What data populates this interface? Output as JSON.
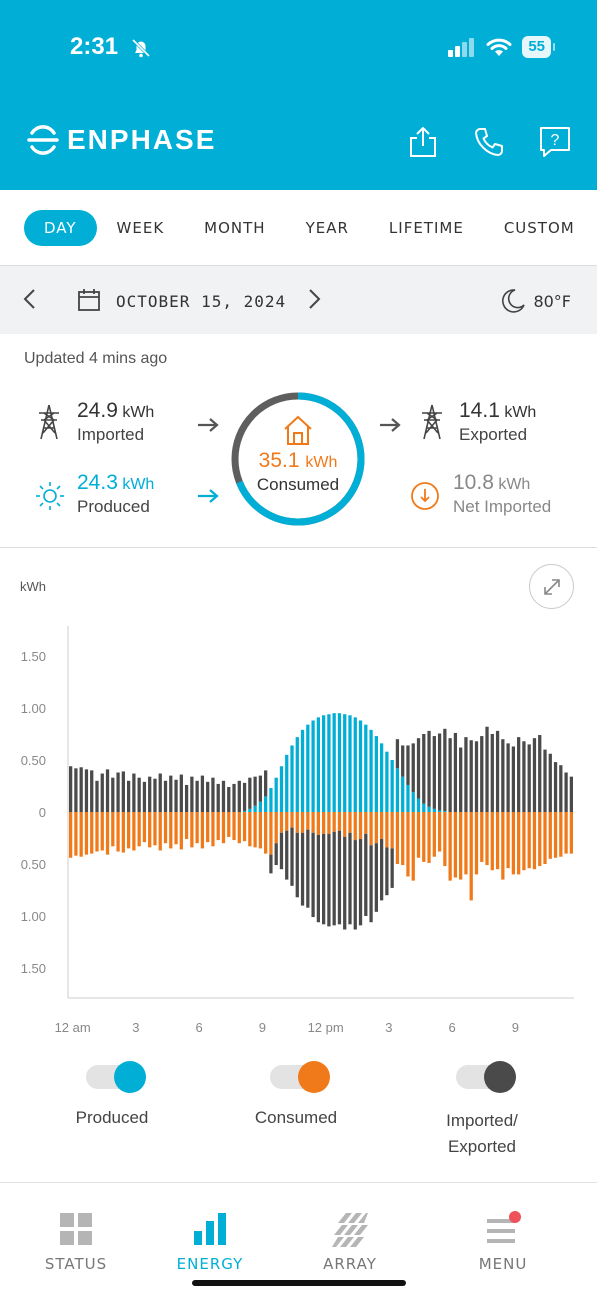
{
  "status_bar": {
    "time": "2:31",
    "battery": "55"
  },
  "header": {
    "brand": "ENPHASE"
  },
  "tabs": [
    {
      "label": "DAY",
      "active": true
    },
    {
      "label": "WEEK"
    },
    {
      "label": "MONTH"
    },
    {
      "label": "YEAR"
    },
    {
      "label": "LIFETIME"
    },
    {
      "label": "CUSTOM"
    }
  ],
  "date_bar": {
    "date": "OCTOBER 15, 2024",
    "temperature": "80°F"
  },
  "summary": {
    "updated": "Updated 4 mins ago",
    "imported": {
      "value": "24.9",
      "unit": "kWh",
      "label": "Imported"
    },
    "produced": {
      "value": "24.3",
      "unit": "kWh",
      "label": "Produced"
    },
    "consumed": {
      "value": "35.1",
      "unit": "kWh",
      "label": "Consumed"
    },
    "exported": {
      "value": "14.1",
      "unit": "kWh",
      "label": "Exported"
    },
    "net": {
      "value": "10.8",
      "unit": "kWh",
      "label": "Net Imported"
    },
    "produced_share_of_consumed": 0.69
  },
  "chart": {
    "ylabel": "kWh"
  },
  "chart_data": {
    "type": "bar",
    "ylabel": "kWh",
    "y_ticks": [
      "1.50",
      "1.00",
      "0.50",
      "0",
      "0.50",
      "1.00",
      "1.50"
    ],
    "x_ticks": [
      "12 am",
      "3",
      "6",
      "9",
      "12 pm",
      "3",
      "6",
      "9"
    ],
    "ylim": [
      -1.75,
      1.75
    ],
    "intervals": 96,
    "interval_minutes": 15,
    "series": [
      {
        "name": "Produced",
        "color": "#00aed6",
        "direction": "up",
        "values": [
          0,
          0,
          0,
          0,
          0,
          0,
          0,
          0,
          0,
          0,
          0,
          0,
          0,
          0,
          0,
          0,
          0,
          0,
          0,
          0,
          0,
          0,
          0,
          0,
          0,
          0,
          0,
          0,
          0,
          0,
          0,
          0,
          0,
          0.01,
          0.03,
          0.06,
          0.1,
          0.15,
          0.23,
          0.33,
          0.44,
          0.55,
          0.64,
          0.72,
          0.79,
          0.84,
          0.88,
          0.91,
          0.93,
          0.94,
          0.95,
          0.95,
          0.94,
          0.93,
          0.91,
          0.88,
          0.84,
          0.79,
          0.73,
          0.66,
          0.58,
          0.5,
          0.42,
          0.34,
          0.26,
          0.19,
          0.13,
          0.08,
          0.05,
          0.03,
          0.015,
          0.01,
          0,
          0,
          0,
          0,
          0,
          0,
          0,
          0,
          0,
          0,
          0,
          0,
          0,
          0,
          0,
          0,
          0,
          0,
          0,
          0,
          0,
          0,
          0,
          0
        ]
      },
      {
        "name": "Imported/Exported",
        "color": "#4a4a4a",
        "direction": "mixed",
        "values": [
          0.44,
          0.42,
          0.43,
          0.41,
          0.4,
          0.3,
          0.37,
          0.41,
          0.33,
          0.38,
          0.39,
          0.3,
          0.37,
          0.33,
          0.29,
          0.34,
          0.32,
          0.37,
          0.3,
          0.35,
          0.31,
          0.36,
          0.26,
          0.34,
          0.3,
          0.35,
          0.29,
          0.33,
          0.27,
          0.3,
          0.24,
          0.27,
          0.3,
          0.27,
          0.3,
          0.28,
          0.25,
          0.25,
          -0.18,
          -0.21,
          -0.35,
          -0.47,
          -0.56,
          -0.62,
          -0.7,
          -0.75,
          -0.81,
          -0.84,
          -0.87,
          -0.89,
          -0.9,
          -0.9,
          -0.89,
          -0.88,
          -0.86,
          -0.83,
          -0.79,
          -0.74,
          -0.66,
          -0.59,
          -0.46,
          -0.38,
          0.28,
          0.3,
          0.38,
          0.47,
          0.58,
          0.67,
          0.73,
          0.7,
          0.74,
          0.79,
          0.71,
          0.76,
          0.62,
          0.72,
          0.69,
          0.68,
          0.73,
          0.82,
          0.75,
          0.78,
          0.7,
          0.66,
          0.63,
          0.72,
          0.68,
          0.65,
          0.71,
          0.74,
          0.6,
          0.56,
          0.48,
          0.45,
          0.38,
          0.34
        ]
      },
      {
        "name": "Consumed",
        "color": "#f07a1a",
        "direction": "down",
        "values": [
          0.44,
          0.42,
          0.43,
          0.41,
          0.4,
          0.38,
          0.37,
          0.41,
          0.33,
          0.38,
          0.39,
          0.35,
          0.37,
          0.33,
          0.29,
          0.34,
          0.32,
          0.37,
          0.3,
          0.35,
          0.31,
          0.36,
          0.26,
          0.34,
          0.3,
          0.35,
          0.29,
          0.33,
          0.27,
          0.3,
          0.24,
          0.27,
          0.3,
          0.28,
          0.33,
          0.34,
          0.35,
          0.4,
          0.41,
          0.3,
          0.2,
          0.18,
          0.15,
          0.2,
          0.2,
          0.17,
          0.2,
          0.22,
          0.21,
          0.21,
          0.19,
          0.18,
          0.24,
          0.2,
          0.27,
          0.26,
          0.21,
          0.32,
          0.3,
          0.26,
          0.34,
          0.35,
          0.5,
          0.51,
          0.62,
          0.66,
          0.44,
          0.48,
          0.49,
          0.43,
          0.38,
          0.52,
          0.66,
          0.63,
          0.65,
          0.6,
          0.85,
          0.6,
          0.48,
          0.51,
          0.56,
          0.55,
          0.65,
          0.54,
          0.6,
          0.6,
          0.56,
          0.54,
          0.55,
          0.52,
          0.5,
          0.45,
          0.44,
          0.43,
          0.4,
          0.4
        ]
      }
    ],
    "legend": [
      "Produced",
      "Consumed",
      "Imported/ Exported"
    ]
  },
  "legend": {
    "produced": "Produced",
    "consumed": "Consumed",
    "imported_line1": "Imported/",
    "imported_line2": "Exported"
  },
  "nav": [
    {
      "label": "STATUS"
    },
    {
      "label": "ENERGY",
      "active": true
    },
    {
      "label": "ARRAY"
    },
    {
      "label": "MENU"
    }
  ],
  "colors": {
    "primary": "#00aed6",
    "consumed": "#f07a1a",
    "grid": "#4a4a4a"
  }
}
